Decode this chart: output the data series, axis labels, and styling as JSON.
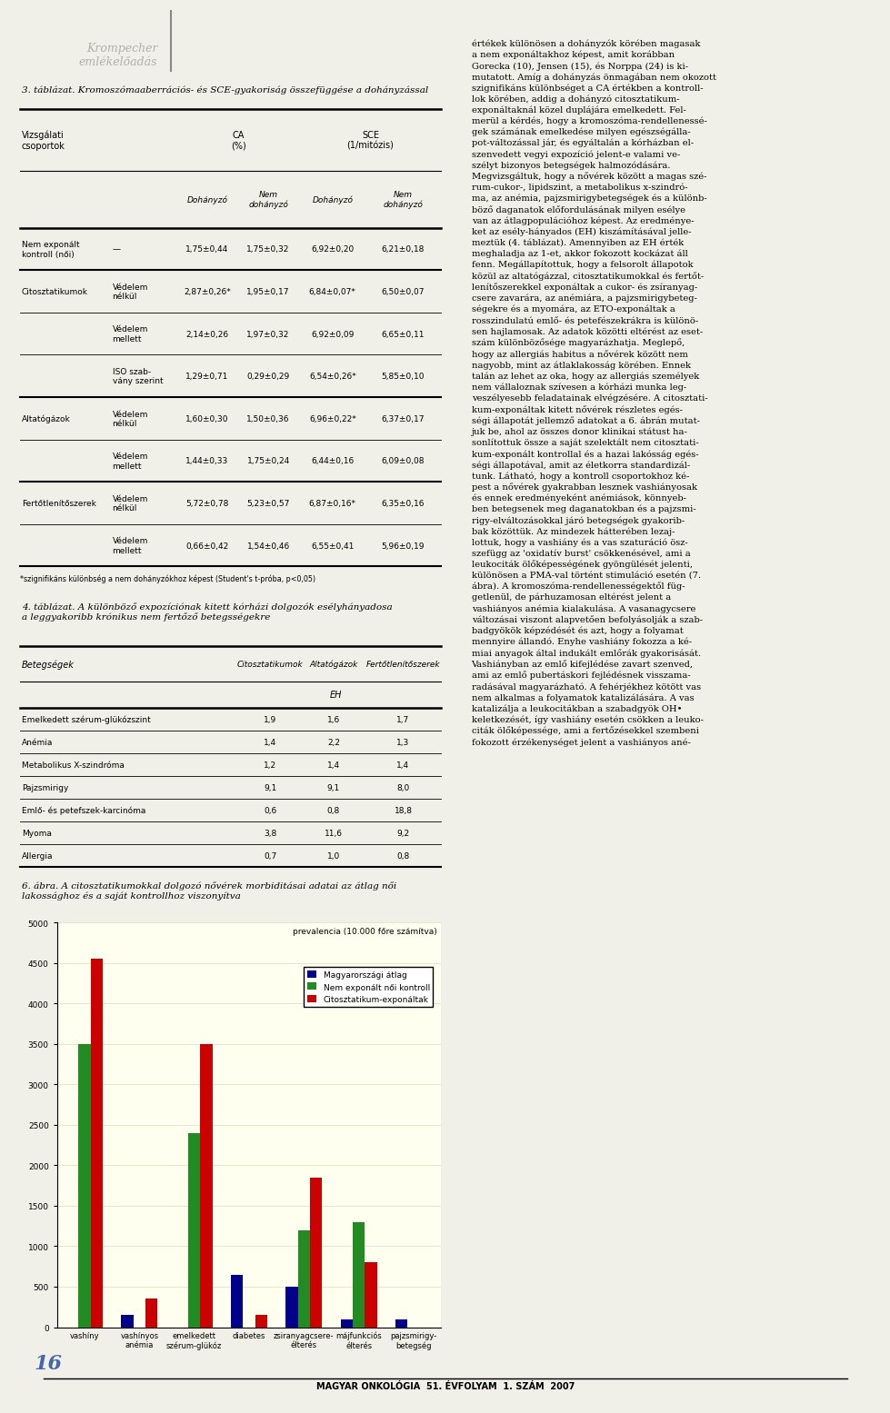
{
  "page_bg": "#f0f0e8",
  "table3_title": "3. táblázat. Kromoszómaaberrációs- és SCE-gyakoriság összefüggése a dohányzással",
  "table3_footnote": "*szignifikáns különbség a nem dohányzókhoz képest (Student's t-próba, p<0,05)",
  "table3_rows": [
    [
      "Nem exponált\nkontroll (női)",
      "—",
      "1,75±0,44",
      "1,75±0,32",
      "6,92±0,20",
      "6,21±0,18",
      true
    ],
    [
      "Citosztatikumok",
      "Védelem\nnélkül",
      "2,87±0,26*",
      "1,95±0,17",
      "6,84±0,07*",
      "6,50±0,07",
      true
    ],
    [
      "",
      "Védelem\nmellett",
      "2,14±0,26",
      "1,97±0,32",
      "6,92±0,09",
      "6,65±0,11",
      false
    ],
    [
      "",
      "ISO szab-\nvány szerint",
      "1,29±0,71",
      "0,29±0,29",
      "6,54±0,26*",
      "5,85±0,10",
      false
    ],
    [
      "Altatógázok",
      "Védelem\nnélkül",
      "1,60±0,30",
      "1,50±0,36",
      "6,96±0,22*",
      "6,37±0,17",
      true
    ],
    [
      "",
      "Védelem\nmellett",
      "1,44±0,33",
      "1,75±0,24",
      "6,44±0,16",
      "6,09±0,08",
      false
    ],
    [
      "Fertőtlenítőszerek",
      "Védelem\nnélkül",
      "5,72±0,78",
      "5,23±0,57",
      "6,87±0,16*",
      "6,35±0,16",
      true
    ],
    [
      "",
      "Védelem\nmellett",
      "0,66±0,42",
      "1,54±0,46",
      "6,55±0,41",
      "5,96±0,19",
      false
    ]
  ],
  "table4_title": "4. táblázat. A különböző expozíciónak kitett kórházi dolgozók esélyhányadosa\na leggyakoribb krónikus nem fertőző betegsségekre",
  "table4_rows": [
    [
      "Emelkedett szérum-glükózszint",
      "1,9",
      "1,6",
      "1,7"
    ],
    [
      "Anémia",
      "1,4",
      "2,2",
      "1,3"
    ],
    [
      "Metabolikus X-szindróma",
      "1,2",
      "1,4",
      "1,4"
    ],
    [
      "Pajzsmirigy",
      "9,1",
      "9,1",
      "8,0"
    ],
    [
      "Emlő- és petefszek-karcinóma",
      "0,6",
      "0,8",
      "18,8"
    ],
    [
      "Myoma",
      "3,8",
      "11,6",
      "9,2"
    ],
    [
      "Allergia",
      "0,7",
      "1,0",
      "0,8"
    ]
  ],
  "fig6_title": "6. ábra. A citosztatikumokkal dolgozó nővérek morbiditásai adatai az átlag női\nlakossághoz és a saját kontrollhoz viszonyítva",
  "fig6_categories": [
    "vashíny",
    "vashínyos\nanémia",
    "emelkedett\nszérum-glükóz",
    "diabetes",
    "zsiranyagcsere-\nélterés",
    "májfunkciós\nélterés",
    "pajzsmirigy-\nbetegség"
  ],
  "fig6_blue": [
    0,
    150,
    0,
    650,
    500,
    100,
    100
  ],
  "fig6_green": [
    3500,
    0,
    2400,
    0,
    1200,
    1300,
    0
  ],
  "fig6_red": [
    4550,
    350,
    3500,
    150,
    1850,
    800,
    0
  ],
  "fig6_ylim": [
    0,
    5000
  ],
  "fig6_yticks": [
    0,
    500,
    1000,
    1500,
    2000,
    2500,
    3000,
    3500,
    4000,
    4500,
    5000
  ],
  "fig6_bg": "#FFFFF0",
  "page_number": "16"
}
